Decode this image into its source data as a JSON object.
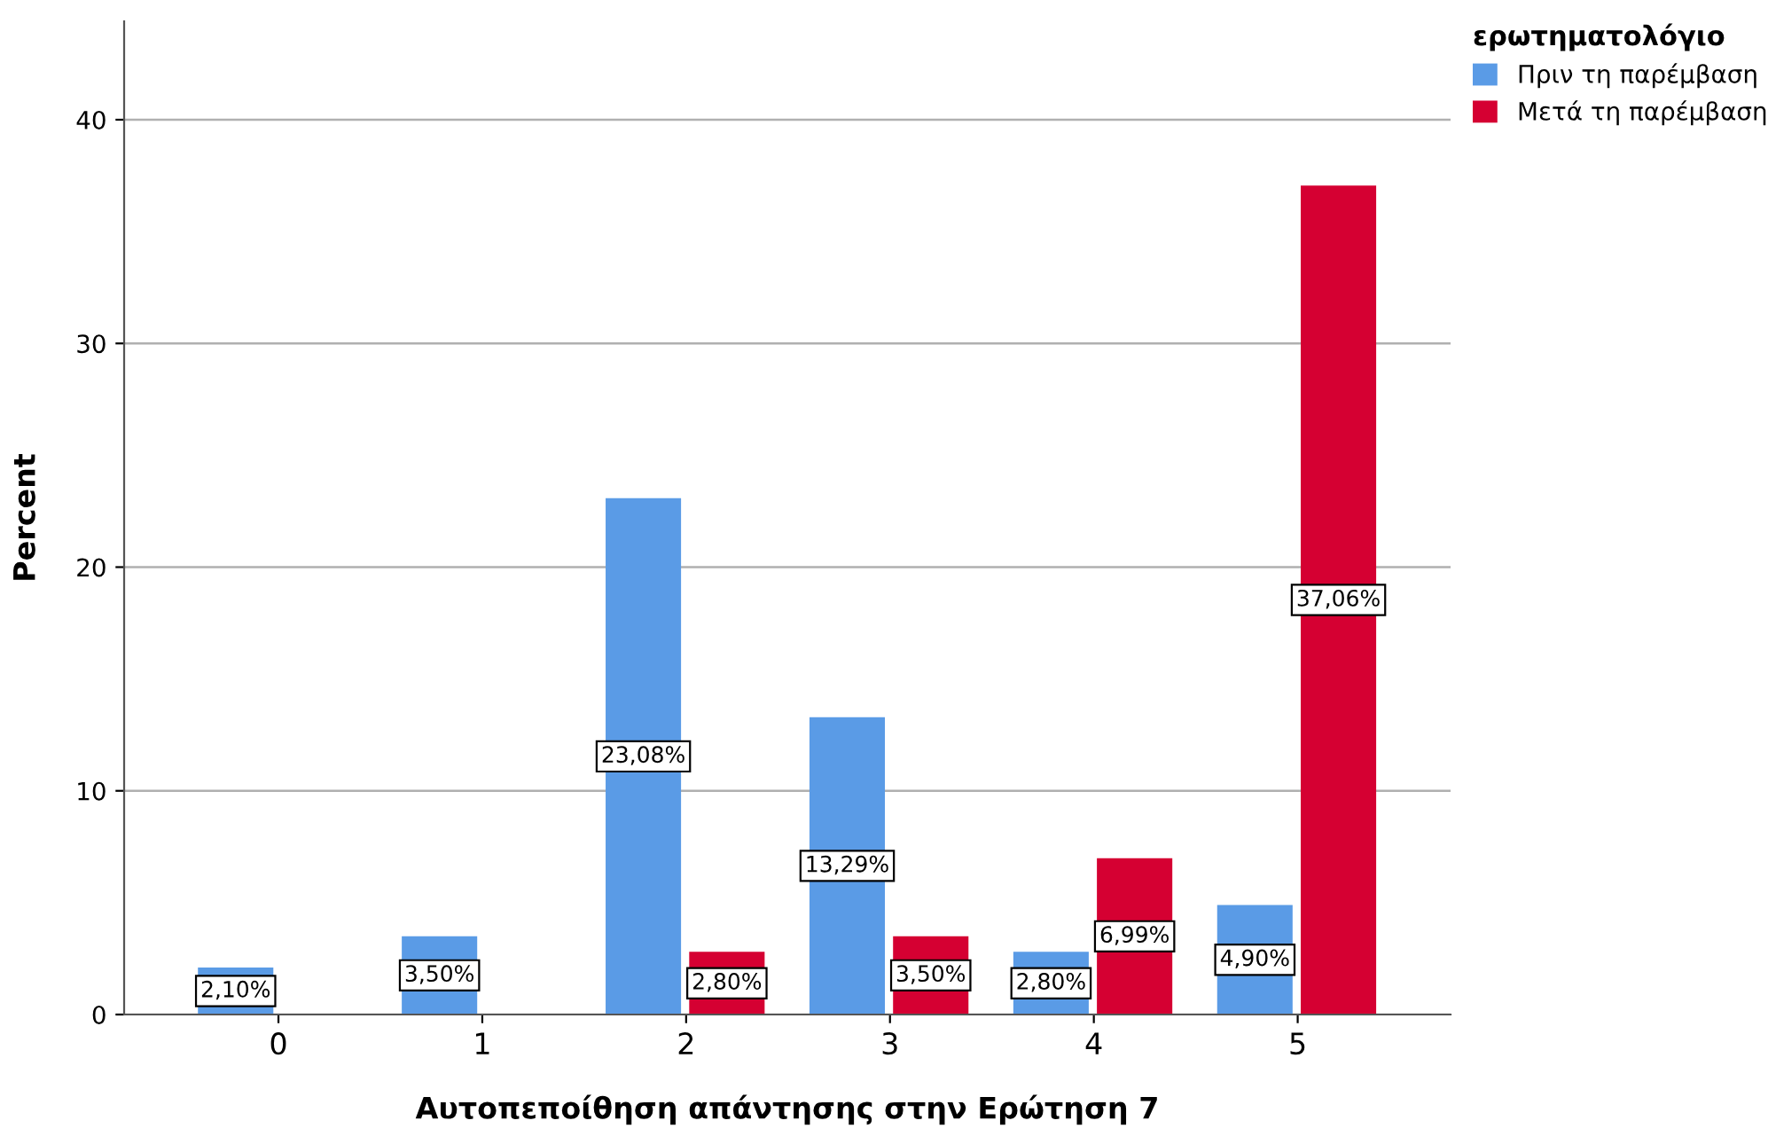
{
  "chart_data": {
    "type": "bar",
    "xlabel": "Αυτοπεποίθηση απάντησης στην Ερώτηση 7",
    "ylabel": "Percent",
    "legend_title": "ερωτηματολόγιο",
    "categories": [
      "0",
      "1",
      "2",
      "3",
      "4",
      "5"
    ],
    "series": [
      {
        "name": "Πριν τη παρέμβαση",
        "color": "#5a9be6",
        "values": [
          2.1,
          3.5,
          23.08,
          13.29,
          2.8,
          4.9
        ],
        "value_labels": [
          "2,10%",
          "3,50%",
          "23,08%",
          "13,29%",
          "2,80%",
          "4,90%"
        ]
      },
      {
        "name": "Μετά τη παρέμβαση",
        "color": "#d50032",
        "values": [
          null,
          null,
          2.8,
          3.5,
          6.99,
          37.06
        ],
        "value_labels": [
          null,
          null,
          "2,80%",
          "3,50%",
          "6,99%",
          "37,06%"
        ]
      }
    ],
    "ylim": [
      0,
      44.4
    ],
    "yticks": [
      0,
      10,
      20,
      30,
      40
    ],
    "grid": "y",
    "legend": "top right"
  }
}
